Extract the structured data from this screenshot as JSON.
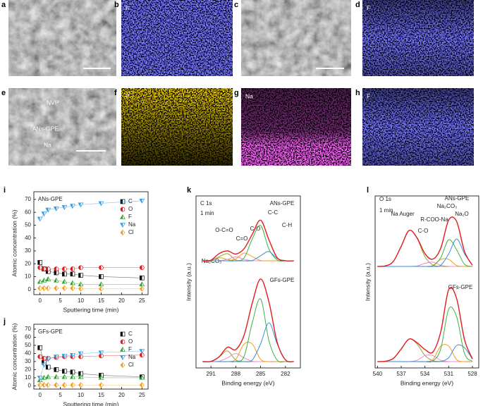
{
  "panels": [
    {
      "letter": "a"
    },
    {
      "letter": "b",
      "label": "F"
    },
    {
      "letter": "c"
    },
    {
      "letter": "d",
      "label": "F"
    },
    {
      "letter": "e",
      "labels": [
        "NVP",
        "ANs-GPE",
        "Na"
      ]
    },
    {
      "letter": "f",
      "label": "P"
    },
    {
      "letter": "g",
      "label": "Na"
    },
    {
      "letter": "h",
      "label": "F"
    }
  ],
  "chart_data": [
    {
      "type": "line",
      "panel": "i",
      "title": "ANs-GPE",
      "xlabel": "Sputtering time (min)",
      "ylabel": "Atomic concentration (%)",
      "x": [
        0,
        1,
        2,
        4,
        6,
        8,
        10,
        15,
        25
      ],
      "xlim": [
        -1.5,
        26.5
      ],
      "xticks": [
        0,
        5,
        10,
        15,
        20,
        25
      ],
      "ylim": [
        -4,
        76
      ],
      "yticks": [
        0,
        10,
        20,
        30,
        40,
        50,
        60,
        70
      ],
      "legend": "upper right",
      "series": [
        {
          "name": "C",
          "color": "#111111",
          "marker": "square",
          "values": [
            21,
            16,
            14,
            13,
            12,
            12,
            11,
            10,
            9
          ]
        },
        {
          "name": "O",
          "color": "#e31a1c",
          "marker": "circle",
          "values": [
            17,
            16,
            16,
            16,
            16,
            16,
            17,
            17,
            17
          ]
        },
        {
          "name": "F",
          "color": "#2ca02c",
          "marker": "triangle",
          "values": [
            6,
            7,
            8,
            7,
            6,
            5,
            4,
            4,
            4
          ]
        },
        {
          "name": "Na",
          "color": "#2f9be0",
          "marker": "triangle-down",
          "values": [
            55,
            59,
            62,
            63,
            64,
            65,
            66,
            67,
            69
          ]
        },
        {
          "name": "Cl",
          "color": "#f39c12",
          "marker": "diamond",
          "values": [
            1,
            1,
            1,
            1,
            1,
            1,
            0.5,
            0.5,
            0.5
          ]
        }
      ]
    },
    {
      "type": "line",
      "panel": "j",
      "title": "GFs-GPE",
      "xlabel": "Sputtering time (min)",
      "ylabel": "Atomic concentration (%)",
      "x": [
        0,
        1,
        2,
        4,
        6,
        8,
        10,
        15,
        25
      ],
      "xlim": [
        -1.5,
        26.5
      ],
      "xticks": [
        0,
        5,
        10,
        15,
        20,
        25
      ],
      "ylim": [
        -4,
        76
      ],
      "yticks": [
        0,
        10,
        20,
        30,
        40,
        50,
        60,
        70
      ],
      "legend": "upper right",
      "series": [
        {
          "name": "C",
          "color": "#111111",
          "marker": "square",
          "values": [
            47,
            29,
            23,
            20,
            18,
            17,
            15,
            13,
            11
          ]
        },
        {
          "name": "O",
          "color": "#e31a1c",
          "marker": "circle",
          "values": [
            36,
            34,
            34,
            35,
            36,
            36,
            36,
            37,
            38
          ]
        },
        {
          "name": "F",
          "color": "#2ca02c",
          "marker": "triangle",
          "values": [
            7,
            10,
            11,
            11,
            11,
            11,
            11,
            10,
            10
          ]
        },
        {
          "name": "Na",
          "color": "#2f9be0",
          "marker": "triangle-down",
          "values": [
            10,
            26,
            33,
            36,
            37,
            38,
            40,
            41,
            43
          ]
        },
        {
          "name": "Cl",
          "color": "#f39c12",
          "marker": "diamond",
          "values": [
            1,
            1,
            1,
            1,
            1,
            1,
            1,
            1,
            1
          ]
        }
      ]
    },
    {
      "type": "spectrum",
      "panel": "k",
      "xlabel": "Binding energy (eV)",
      "ylabel": "Intensity (a.u.)",
      "annotations": [
        "C 1s",
        "1 min"
      ],
      "x": [
        292,
        291,
        290,
        289,
        288,
        287,
        286,
        285,
        284,
        283,
        282,
        281
      ],
      "xlim": [
        292.8,
        280.2
      ],
      "xticks": [
        291,
        288,
        285,
        282
      ],
      "spectra": [
        {
          "label": "ANs-GPE",
          "ylim": [
            0,
            110
          ],
          "series": [
            {
              "color": "#e41a1c",
              "values": [
                0,
                0.7,
                9.0,
                12.3,
                8.4,
                15.0,
                33.0,
                50.3,
                26.1,
                3.8,
                0.1,
                0
              ]
            },
            {
              "name": "Na₂CO₃",
              "color": "#c8b400",
              "values": [
                0,
                0.5,
                3.8,
                1.6,
                0,
                0,
                0,
                0,
                0,
                0,
                0,
                0
              ]
            },
            {
              "name": "O-C=O",
              "color": "#9c9c2a",
              "values": [
                0,
                0.2,
                5.1,
                8.8,
                1.0,
                0,
                0,
                0,
                0,
                0,
                0,
                0
              ]
            },
            {
              "name": "C=O",
              "color": "#e58ccf",
              "values": [
                0,
                0,
                0.1,
                1.8,
                5,
                1.8,
                0.1,
                0,
                0,
                0,
                0,
                0
              ]
            },
            {
              "name": "C-O",
              "color": "#f39c23",
              "values": [
                0,
                0,
                0,
                0.1,
                2.3,
                9.6,
                5.2,
                0.4,
                0,
                0,
                0,
                0
              ]
            },
            {
              "name": "C-C",
              "color": "#3fb13f",
              "values": [
                0,
                0,
                0,
                0,
                0.1,
                3.6,
                27.3,
                43.6,
                14.6,
                1.0,
                0,
                0
              ]
            },
            {
              "name": "C-H",
              "color": "#3a8fd9",
              "values": [
                0,
                0,
                0,
                0,
                0,
                0,
                0.4,
                6.3,
                11.5,
                2.8,
                0.1,
                0
              ]
            }
          ]
        },
        {
          "label": "GFs-GPE",
          "ylim": [
            0,
            110
          ],
          "series": [
            {
              "color": "#e41a1c",
              "values": [
                0,
                0.2,
                6.1,
                17.8,
                14.9,
                32.7,
                72.8,
                102.3,
                74,
                23.8,
                2.1,
                0
              ]
            },
            {
              "color": "#9c9c2a",
              "values": [
                0,
                0.2,
                5.7,
                13.2,
                1.9,
                0,
                0,
                0,
                0,
                0,
                0,
                0
              ]
            },
            {
              "color": "#e58ccf",
              "values": [
                0,
                0,
                0.4,
                4.6,
                10,
                4.6,
                0.4,
                0,
                0,
                0,
                0,
                0
              ]
            },
            {
              "color": "#f39c23",
              "values": [
                0,
                0,
                0,
                0,
                2.8,
                21.7,
                21.7,
                2.8,
                0,
                0,
                0,
                0
              ]
            },
            {
              "color": "#3fb13f",
              "values": [
                0,
                0,
                0,
                0,
                0.2,
                6.4,
                48.6,
                77.5,
                26.0,
                1.8,
                0,
                0
              ]
            },
            {
              "color": "#3a8fd9",
              "values": [
                0,
                0,
                0,
                0,
                0,
                0,
                2.1,
                22.0,
                48,
                22.0,
                2.1,
                0
              ]
            }
          ]
        }
      ]
    },
    {
      "type": "spectrum",
      "panel": "l",
      "xlabel": "Binding energy (eV)",
      "ylabel": "Intensity (a.u.)",
      "annotations": [
        "O 1s",
        "1 min"
      ],
      "x": [
        540,
        539,
        538,
        537,
        536,
        535,
        534,
        533,
        532,
        531,
        530,
        529,
        528
      ],
      "xlim": [
        540.3,
        527.2
      ],
      "xticks": [
        540,
        537,
        534,
        531,
        528
      ],
      "spectra": [
        {
          "label": "ANs-GPE",
          "ylim": [
            0,
            110
          ],
          "series": [
            {
              "color": "#e41a1c",
              "values": [
                0,
                0.6,
                5.4,
                22.1,
                39.3,
                31.2,
                13.9,
                8.0,
                20.1,
                50.7,
                49.2,
                16.2,
                1.3
              ]
            },
            {
              "name": "Na Auger",
              "color": "#9c9c2a",
              "values": [
                0,
                0.6,
                5.4,
                22.1,
                39.3,
                30.7,
                10.5,
                1.6,
                0.1,
                0,
                0,
                0,
                0
              ]
            },
            {
              "name": "C-O",
              "color": "#e58ccf",
              "values": [
                0,
                0,
                0,
                0,
                0,
                0.5,
                3.4,
                4.7,
                1.3,
                0.1,
                0,
                0,
                0
              ]
            },
            {
              "name": "R-COO-Na",
              "color": "#f39c23",
              "values": [
                0,
                0,
                0,
                0,
                0,
                0,
                0,
                1.0,
                7.7,
                7.7,
                1.0,
                0,
                0
              ]
            },
            {
              "name": "Na₂CO₃",
              "color": "#3fb13f",
              "values": [
                0,
                0,
                0,
                0,
                0,
                0,
                0,
                0.7,
                9.7,
                29.1,
                18.2,
                2.4,
                0
              ]
            },
            {
              "name": "Na₂O",
              "color": "#3a8fd9",
              "values": [
                0,
                0,
                0,
                0,
                0,
                0,
                0,
                0,
                1.3,
                13.8,
                30,
                13.8,
                1.3
              ]
            }
          ]
        },
        {
          "label": "GFs-GPE",
          "ylim": [
            0,
            110
          ],
          "series": [
            {
              "color": "#e41a1c",
              "values": [
                0,
                0.4,
                3.4,
                13.8,
                24.6,
                20.6,
                13.2,
                10.5,
                32.7,
                78.6,
                68.8,
                23.9,
                3.0
              ]
            },
            {
              "color": "#9c9c2a",
              "values": [
                0,
                0.4,
                3.4,
                13.8,
                24.6,
                19.2,
                6.6,
                1.0,
                0.1,
                0,
                0,
                0,
                0
              ]
            },
            {
              "color": "#e58ccf",
              "values": [
                0,
                0,
                0,
                0,
                0,
                1.4,
                6.6,
                6.6,
                1.4,
                0.1,
                0,
                0,
                0
              ]
            },
            {
              "color": "#f39c23",
              "values": [
                0,
                0,
                0,
                0,
                0,
                0,
                0,
                2.2,
                16.9,
                16.9,
                2.2,
                0,
                0
              ]
            },
            {
              "color": "#3fb13f",
              "values": [
                0,
                0,
                0,
                0,
                0,
                0,
                0,
                0.7,
                14.1,
                57.3,
                49.0,
                8.8,
                0.3
              ]
            },
            {
              "color": "#3a8fd9",
              "values": [
                0,
                0,
                0,
                0,
                0,
                0,
                0,
                0,
                0.2,
                4.3,
                17.6,
                15.1,
                2.7
              ]
            }
          ]
        }
      ]
    }
  ]
}
